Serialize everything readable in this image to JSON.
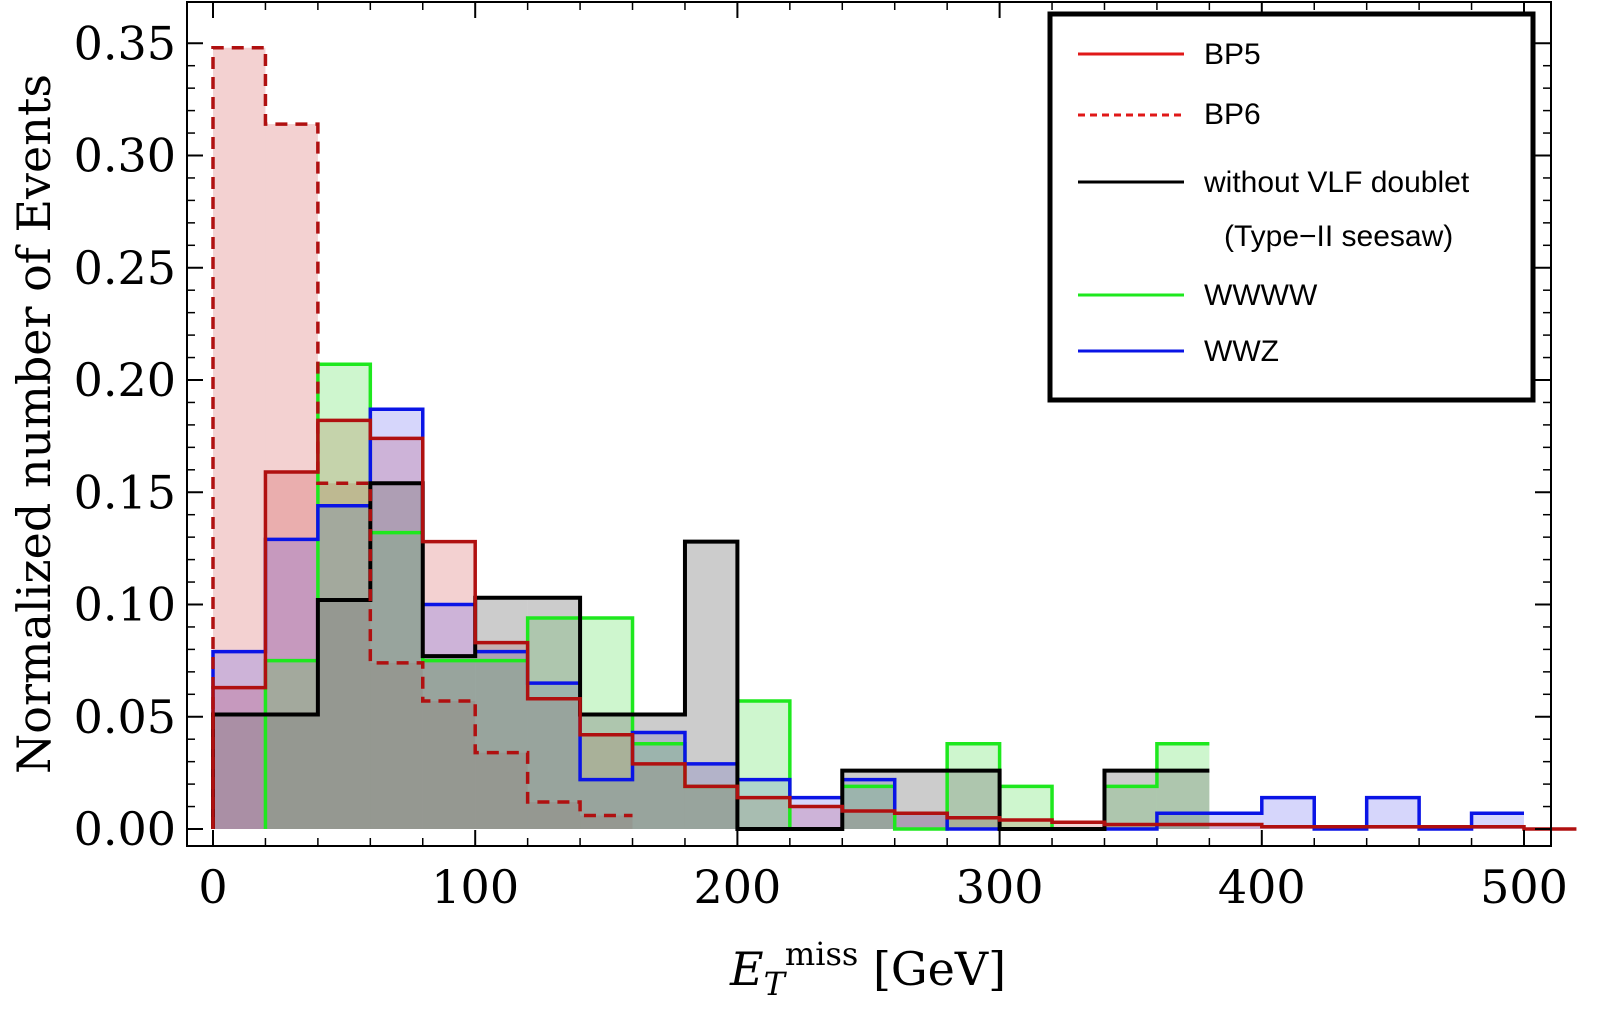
{
  "chart_data": {
    "type": "histogram",
    "title": "",
    "xlabel": "E_T^miss [GeV]",
    "xlabel_main": "E",
    "xlabel_sub": "T",
    "xlabel_sup": "miss",
    "xlabel_unit": " [GeV]",
    "ylabel": "Normalized number of Events",
    "xlim": [
      0,
      510
    ],
    "ylim": [
      0,
      0.36
    ],
    "x_ticks": [
      0,
      100,
      200,
      300,
      400,
      500
    ],
    "x_tick_labels": [
      "0",
      "100",
      "200",
      "300",
      "400",
      "500"
    ],
    "y_ticks": [
      0.0,
      0.05,
      0.1,
      0.15,
      0.2,
      0.25,
      0.3,
      0.35
    ],
    "y_tick_labels": [
      "0.00",
      "0.05",
      "0.10",
      "0.15",
      "0.20",
      "0.25",
      "0.30",
      "0.35"
    ],
    "bin_width": 20,
    "legend_position": "top-right",
    "series": [
      {
        "name": "BP5",
        "key": "bp5",
        "label": "BP5",
        "color": "#b01010",
        "fill": "#d04848",
        "fill_opacity": 0.25,
        "dashed": false,
        "start": 0,
        "values": [
          0.063,
          0.159,
          0.182,
          0.174,
          0.128,
          0.083,
          0.058,
          0.042,
          0.029,
          0.019,
          0.014,
          0.01,
          0.008,
          0.007,
          0.005,
          0.004,
          0.003,
          0.002,
          0.002,
          0.002,
          0.001,
          0.001,
          0.001,
          0.001,
          0.001,
          0.0
        ]
      },
      {
        "name": "BP6",
        "key": "bp6",
        "label": "BP6",
        "color": "#b01010",
        "fill": "#d04848",
        "fill_opacity": 0.25,
        "dashed": true,
        "start": 0,
        "values": [
          0.348,
          0.314,
          0.154,
          0.074,
          0.057,
          0.034,
          0.012,
          0.006
        ]
      },
      {
        "name": "without VLF doublet (Type-II seesaw)",
        "key": "novlf",
        "label": "without VLF doublet",
        "label2": "(Type−II seesaw)",
        "color": "#000000",
        "fill": "#808080",
        "fill_opacity": 0.4,
        "dashed": false,
        "start": 0,
        "values": [
          0.051,
          0.051,
          0.102,
          0.154,
          0.077,
          0.103,
          0.103,
          0.051,
          0.051,
          0.128,
          0.0,
          0.0,
          0.026,
          0.026,
          0.026,
          0.0,
          0.0,
          0.026,
          0.026
        ]
      },
      {
        "name": "WWWW",
        "key": "wwww",
        "label": "WWWW",
        "color": "#1ee81e",
        "fill": "#3cdc3c",
        "fill_opacity": 0.25,
        "dashed": false,
        "start": 20,
        "values": [
          0.075,
          0.207,
          0.132,
          0.075,
          0.075,
          0.094,
          0.094,
          0.038,
          0.019,
          0.057,
          0.0,
          0.019,
          0.0,
          0.038,
          0.019,
          0.0,
          0.019,
          0.038
        ]
      },
      {
        "name": "WWZ",
        "key": "wwz",
        "label": "WWZ",
        "color": "#0a14e6",
        "fill": "#5a5af0",
        "fill_opacity": 0.25,
        "dashed": false,
        "start": 0,
        "values": [
          0.079,
          0.129,
          0.144,
          0.187,
          0.1,
          0.079,
          0.065,
          0.022,
          0.043,
          0.029,
          0.022,
          0.014,
          0.022,
          0.007,
          0.0,
          0.0,
          0.0,
          0.0,
          0.007,
          0.007,
          0.014,
          0.0,
          0.014,
          0.0,
          0.007
        ]
      }
    ]
  }
}
